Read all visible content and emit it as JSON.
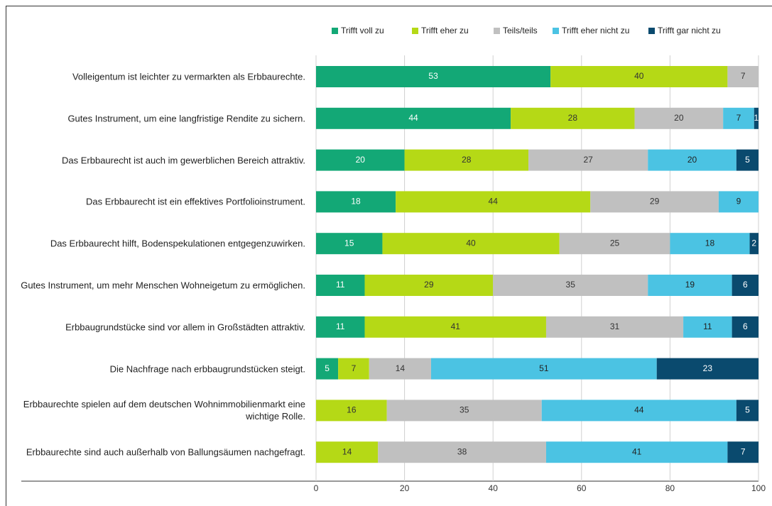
{
  "chart_data": {
    "type": "stacked-bar-horizontal",
    "categories": [
      "Volleigentum ist leichter zu vermarkten als Erbbaurechte.",
      "Gutes Instrument, um eine langfristige Rendite zu sichern.",
      "Das Erbbaurecht ist auch im gewerblichen Bereich attraktiv.",
      "Das Erbbaurecht ist ein effektives Portfolioinstrument.",
      "Das Erbbaurecht hilft, Bodenspekulationen entgegenzuwirken.",
      "Gutes Instrument, um mehr Menschen Wohneigetum zu ermöglichen.",
      "Erbbaugrundstücke sind vor allem in Großstädten attraktiv.",
      "Die Nachfrage nach erbbaugrundstücken steigt.",
      "Erbbaurechte spielen auf dem deutschen Wohnimmobilienmarkt eine wichtige Rolle.",
      "Erbbaurechte sind auch außerhalb von Ballungsäumen nachgefragt."
    ],
    "series": [
      {
        "name": "Trifft voll zu",
        "color": "#13a876",
        "values": [
          53,
          44,
          20,
          18,
          15,
          11,
          11,
          5,
          null,
          null
        ]
      },
      {
        "name": "Trifft eher zu",
        "color": "#b5d916",
        "values": [
          40,
          28,
          28,
          44,
          40,
          29,
          41,
          7,
          16,
          14
        ]
      },
      {
        "name": "Teils/teils",
        "color": "#c0c0c0",
        "values": [
          7,
          20,
          27,
          29,
          25,
          35,
          31,
          14,
          35,
          38
        ]
      },
      {
        "name": "Trifft eher nicht zu",
        "color": "#4bc3e3",
        "values": [
          null,
          7,
          20,
          9,
          18,
          19,
          11,
          51,
          44,
          41
        ]
      },
      {
        "name": "Trifft gar nicht zu",
        "color": "#0a4a6e",
        "values": [
          null,
          1,
          5,
          null,
          2,
          6,
          6,
          23,
          5,
          7
        ]
      }
    ],
    "xlim": [
      0,
      100
    ],
    "xticks": [
      0,
      20,
      40,
      60,
      80,
      100
    ],
    "grid": true,
    "legend": "top"
  }
}
